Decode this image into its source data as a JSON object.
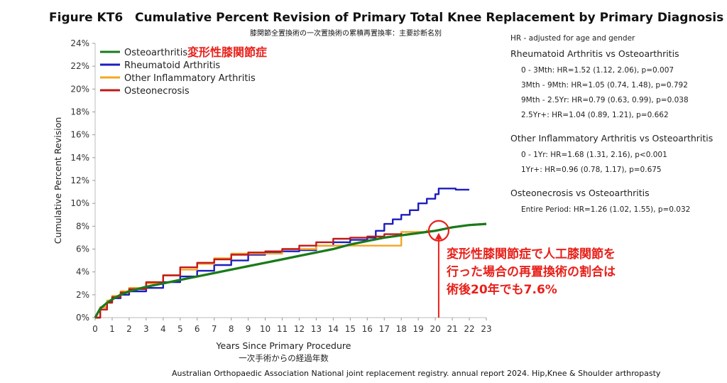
{
  "figure_label": "Figure KT6",
  "title": "Cumulative Percent Revision of Primary Total Knee Replacement by Primary Diagnosis",
  "subtitle_ja": "膝関節全置換術の一次置換術の累積再置換率：主要診断名別",
  "citation": "Australian Orthopaedic Association National joint replacement registry. annual report 2024. Hip,Knee & Shoulder arthropasty",
  "hr_panel": {
    "note": "HR - adjusted for age and gender",
    "groups": [
      {
        "title": "Rheumatoid Arthritis vs Osteoarthritis",
        "rows": [
          "0 - 3Mth: HR=1.52 (1.12, 2.06), p=0.007",
          "3Mth - 9Mth: HR=1.05 (0.74, 1.48), p=0.792",
          "9Mth - 2.5Yr: HR=0.79 (0.63, 0.99), p=0.038",
          "2.5Yr+: HR=1.04 (0.89, 1.21), p=0.662"
        ]
      },
      {
        "title": "Other Inflammatory Arthritis vs Osteoarthritis",
        "rows": [
          "0 - 1Yr: HR=1.68 (1.31, 2.16), p<0.001",
          "1Yr+: HR=0.96 (0.78, 1.17), p=0.675"
        ]
      },
      {
        "title": "Osteonecrosis vs Osteoarthritis",
        "rows": [
          "Entire Period: HR=1.26 (1.02, 1.55), p=0.032"
        ]
      }
    ]
  },
  "annotation": {
    "legend_note_ja": "変形性膝関節症",
    "callout_lines": [
      "変形性膝関節症で人工膝関節を",
      "行った場合の再置換術の割合は",
      "術後20年でも7.6%"
    ],
    "marker_x": 20.2,
    "marker_y": 7.6
  },
  "colors": {
    "Osteoarthritis": "#1a7a1a",
    "Rheumatoid Arthritis": "#1d1dbf",
    "Other Inflammatory Arthritis": "#f5a623",
    "Osteonecrosis": "#c01818",
    "annotation": "#e8201a"
  },
  "chart_data": {
    "type": "line",
    "title": "Cumulative Percent Revision of Primary Total Knee Replacement by Primary Diagnosis",
    "xlabel": "Years Since Primary Procedure",
    "xlabel_ja": "一次手術からの経過年数",
    "ylabel": "Cumulative Percent Revision",
    "xlim": [
      0,
      23
    ],
    "ylim": [
      0,
      24
    ],
    "x_ticks": [
      "0",
      "1",
      "2",
      "3",
      "4",
      "5",
      "6",
      "7",
      "8",
      "9",
      "10",
      "11",
      "12",
      "13",
      "14",
      "15",
      "16",
      "17",
      "18",
      "19",
      "20",
      "21",
      "22",
      "23"
    ],
    "y_ticks": [
      "0%",
      "2%",
      "4%",
      "6%",
      "8%",
      "10%",
      "12%",
      "14%",
      "16%",
      "18%",
      "20%",
      "22%",
      "24%"
    ],
    "legend_position": "top-left",
    "series": [
      {
        "name": "Osteoarthritis",
        "step": false,
        "points": [
          [
            0,
            0
          ],
          [
            0.3,
            0.8
          ],
          [
            0.7,
            1.3
          ],
          [
            1,
            1.6
          ],
          [
            1.5,
            2.0
          ],
          [
            2,
            2.3
          ],
          [
            3,
            2.7
          ],
          [
            4,
            3.0
          ],
          [
            5,
            3.3
          ],
          [
            6,
            3.6
          ],
          [
            7,
            3.9
          ],
          [
            8,
            4.2
          ],
          [
            9,
            4.5
          ],
          [
            10,
            4.8
          ],
          [
            11,
            5.1
          ],
          [
            12,
            5.4
          ],
          [
            13,
            5.7
          ],
          [
            14,
            6.0
          ],
          [
            15,
            6.4
          ],
          [
            16,
            6.7
          ],
          [
            17,
            7.0
          ],
          [
            18,
            7.2
          ],
          [
            19,
            7.4
          ],
          [
            20,
            7.6
          ],
          [
            21,
            7.9
          ],
          [
            22,
            8.1
          ],
          [
            23,
            8.2
          ]
        ]
      },
      {
        "name": "Rheumatoid Arthritis",
        "step": true,
        "points": [
          [
            0,
            0
          ],
          [
            0.3,
            0.9
          ],
          [
            0.7,
            1.4
          ],
          [
            1,
            1.7
          ],
          [
            1.5,
            2.0
          ],
          [
            2,
            2.3
          ],
          [
            3,
            2.6
          ],
          [
            4,
            3.1
          ],
          [
            5,
            3.6
          ],
          [
            6,
            4.1
          ],
          [
            7,
            4.6
          ],
          [
            8,
            5.0
          ],
          [
            9,
            5.5
          ],
          [
            10,
            5.7
          ],
          [
            11,
            5.8
          ],
          [
            12,
            5.9
          ],
          [
            13,
            6.3
          ],
          [
            14,
            6.6
          ],
          [
            15,
            6.8
          ],
          [
            16,
            7.0
          ],
          [
            16.5,
            7.6
          ],
          [
            17,
            8.2
          ],
          [
            17.5,
            8.6
          ],
          [
            18,
            9.0
          ],
          [
            18.5,
            9.4
          ],
          [
            19,
            10.0
          ],
          [
            19.5,
            10.4
          ],
          [
            20,
            10.8
          ],
          [
            20.2,
            11.3
          ],
          [
            21,
            11.3
          ],
          [
            21.2,
            11.2
          ],
          [
            22,
            11.2
          ]
        ]
      },
      {
        "name": "Other Inflammatory Arthritis",
        "step": true,
        "points": [
          [
            0,
            0
          ],
          [
            0.3,
            0.9
          ],
          [
            0.7,
            1.5
          ],
          [
            1,
            1.9
          ],
          [
            1.5,
            2.3
          ],
          [
            2,
            2.6
          ],
          [
            3,
            3.0
          ],
          [
            4,
            3.7
          ],
          [
            5,
            4.2
          ],
          [
            6,
            4.7
          ],
          [
            7,
            5.2
          ],
          [
            8,
            5.6
          ],
          [
            9,
            5.6
          ],
          [
            10,
            5.6
          ],
          [
            11,
            6.0
          ],
          [
            12,
            6.0
          ],
          [
            13,
            6.3
          ],
          [
            14,
            6.3
          ],
          [
            15,
            6.3
          ],
          [
            16,
            6.3
          ],
          [
            17,
            6.3
          ],
          [
            17.9,
            6.3
          ],
          [
            18,
            7.5
          ],
          [
            19,
            7.5
          ],
          [
            19.5,
            7.7
          ]
        ]
      },
      {
        "name": "Osteonecrosis",
        "step": true,
        "points": [
          [
            0,
            0
          ],
          [
            0.3,
            0.7
          ],
          [
            0.7,
            1.3
          ],
          [
            1,
            1.8
          ],
          [
            1.5,
            2.2
          ],
          [
            2,
            2.5
          ],
          [
            3,
            3.1
          ],
          [
            4,
            3.7
          ],
          [
            5,
            4.4
          ],
          [
            6,
            4.8
          ],
          [
            7,
            5.1
          ],
          [
            8,
            5.5
          ],
          [
            9,
            5.7
          ],
          [
            10,
            5.8
          ],
          [
            11,
            6.0
          ],
          [
            12,
            6.3
          ],
          [
            13,
            6.6
          ],
          [
            14,
            6.9
          ],
          [
            15,
            7.0
          ],
          [
            16,
            7.1
          ],
          [
            17,
            7.3
          ],
          [
            18,
            7.4
          ]
        ]
      }
    ]
  }
}
